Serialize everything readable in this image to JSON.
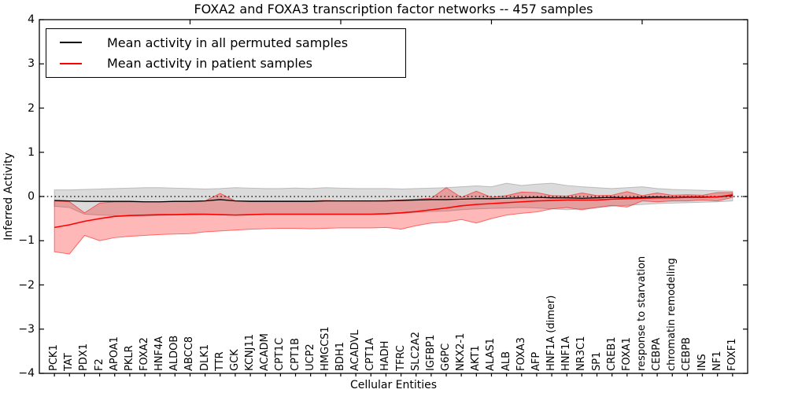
{
  "chart_data": {
    "type": "line",
    "title": "FOXA2 and FOXA3 transcription factor networks -- 457 samples",
    "xlabel": "Cellular Entities",
    "ylabel": "Inferred Activity",
    "ylim": [
      -4,
      4
    ],
    "xlim_units": [
      0,
      47
    ],
    "ytick_labels": [
      "4",
      "3",
      "2",
      "1",
      "0",
      "−1",
      "−2",
      "−3",
      "−4"
    ],
    "ytick_values": [
      4,
      3,
      2,
      1,
      0,
      -1,
      -2,
      -3,
      -4
    ],
    "top_tick_units": [
      10,
      20,
      30,
      40
    ],
    "grid": false,
    "legend_position": "upper left",
    "reference_line": {
      "value": 0,
      "style": "dotted",
      "color": "#1a1a1a"
    },
    "categories": [
      "PCK1",
      "TAT",
      "PDX1",
      "F2",
      "APOA1",
      "PKLR",
      "FOXA2",
      "HNF4A",
      "ALDOB",
      "ABCC8",
      "DLK1",
      "TTR",
      "GCK",
      "KCNJ11",
      "ACADM",
      "CPT1C",
      "CPT1B",
      "UCP2",
      "HMGCS1",
      "BDH1",
      "ACADVL",
      "CPT1A",
      "HADH",
      "TFRC",
      "SLC2A2",
      "IGFBP1",
      "G6PC",
      "NKX2-1",
      "AKT1",
      "ALAS1",
      "ALB",
      "FOXA3",
      "AFP",
      "HNF1A (dimer)",
      "HNF1A",
      "NR3C1",
      "SP1",
      "CREB1",
      "FOXA1",
      "response to starvation",
      "CEBPA",
      "chromatin remodeling",
      "CEBPB",
      "INS",
      "NF1",
      "FOXF1"
    ],
    "series": [
      {
        "name": "Mean activity in all permuted samples",
        "color": "#000000",
        "line_width": 1.3,
        "band_color": "#999999",
        "band_opacity": 0.35,
        "values": [
          -0.09,
          -0.1,
          -0.11,
          -0.11,
          -0.11,
          -0.11,
          -0.12,
          -0.12,
          -0.11,
          -0.11,
          -0.1,
          -0.07,
          -0.1,
          -0.11,
          -0.11,
          -0.11,
          -0.11,
          -0.11,
          -0.1,
          -0.1,
          -0.1,
          -0.1,
          -0.1,
          -0.09,
          -0.08,
          -0.07,
          -0.07,
          -0.06,
          -0.05,
          -0.05,
          -0.04,
          -0.03,
          -0.02,
          -0.03,
          -0.03,
          -0.04,
          -0.03,
          -0.02,
          -0.03,
          -0.02,
          -0.01,
          -0.02,
          -0.01,
          -0.01,
          -0.01,
          0.02
        ],
        "band_upper": [
          0.15,
          0.15,
          0.16,
          0.17,
          0.18,
          0.19,
          0.2,
          0.2,
          0.19,
          0.18,
          0.17,
          0.18,
          0.2,
          0.19,
          0.18,
          0.18,
          0.19,
          0.18,
          0.2,
          0.19,
          0.18,
          0.18,
          0.18,
          0.17,
          0.18,
          0.19,
          0.2,
          0.22,
          0.24,
          0.22,
          0.3,
          0.25,
          0.28,
          0.3,
          0.25,
          0.22,
          0.2,
          0.18,
          0.2,
          0.22,
          0.18,
          0.16,
          0.15,
          0.14,
          0.13,
          0.12
        ],
        "band_lower": [
          -0.22,
          -0.25,
          -0.4,
          -0.42,
          -0.43,
          -0.44,
          -0.44,
          -0.43,
          -0.42,
          -0.42,
          -0.41,
          -0.41,
          -0.42,
          -0.41,
          -0.4,
          -0.4,
          -0.4,
          -0.4,
          -0.4,
          -0.4,
          -0.4,
          -0.4,
          -0.4,
          -0.38,
          -0.36,
          -0.34,
          -0.33,
          -0.3,
          -0.28,
          -0.27,
          -0.26,
          -0.25,
          -0.26,
          -0.28,
          -0.3,
          -0.28,
          -0.25,
          -0.22,
          -0.2,
          -0.18,
          -0.16,
          -0.15,
          -0.14,
          -0.13,
          -0.12,
          -0.1
        ]
      },
      {
        "name": "Mean activity in patient samples",
        "color": "#ff0000",
        "line_width": 1.6,
        "band_color": "#ff0000",
        "band_opacity": 0.28,
        "values": [
          -0.7,
          -0.64,
          -0.56,
          -0.5,
          -0.45,
          -0.43,
          -0.42,
          -0.41,
          -0.41,
          -0.4,
          -0.4,
          -0.41,
          -0.42,
          -0.41,
          -0.4,
          -0.4,
          -0.4,
          -0.4,
          -0.4,
          -0.4,
          -0.4,
          -0.4,
          -0.39,
          -0.37,
          -0.34,
          -0.3,
          -0.26,
          -0.21,
          -0.18,
          -0.16,
          -0.14,
          -0.12,
          -0.1,
          -0.09,
          -0.08,
          -0.08,
          -0.08,
          -0.06,
          -0.05,
          -0.04,
          -0.03,
          -0.03,
          -0.02,
          -0.02,
          -0.01,
          0.04
        ],
        "band_upper": [
          -0.1,
          -0.12,
          -0.37,
          -0.15,
          -0.12,
          -0.12,
          -0.12,
          -0.12,
          -0.11,
          -0.11,
          -0.1,
          0.07,
          -0.1,
          -0.1,
          -0.1,
          -0.1,
          -0.1,
          -0.1,
          -0.09,
          -0.1,
          -0.1,
          -0.1,
          -0.09,
          -0.08,
          -0.06,
          -0.04,
          0.2,
          -0.02,
          0.12,
          -0.02,
          0.02,
          0.1,
          0.09,
          0.02,
          0.01,
          0.08,
          0.02,
          0.03,
          0.11,
          0.02,
          0.08,
          0.03,
          0.04,
          0.03,
          0.09,
          0.09
        ],
        "band_lower": [
          -1.25,
          -1.3,
          -0.88,
          -1.0,
          -0.93,
          -0.9,
          -0.88,
          -0.86,
          -0.85,
          -0.84,
          -0.8,
          -0.78,
          -0.76,
          -0.74,
          -0.73,
          -0.72,
          -0.72,
          -0.73,
          -0.72,
          -0.71,
          -0.71,
          -0.71,
          -0.7,
          -0.74,
          -0.66,
          -0.6,
          -0.58,
          -0.52,
          -0.6,
          -0.5,
          -0.42,
          -0.38,
          -0.35,
          -0.28,
          -0.25,
          -0.3,
          -0.25,
          -0.2,
          -0.24,
          -0.1,
          -0.12,
          -0.1,
          -0.1,
          -0.08,
          -0.1,
          -0.02
        ]
      }
    ]
  }
}
